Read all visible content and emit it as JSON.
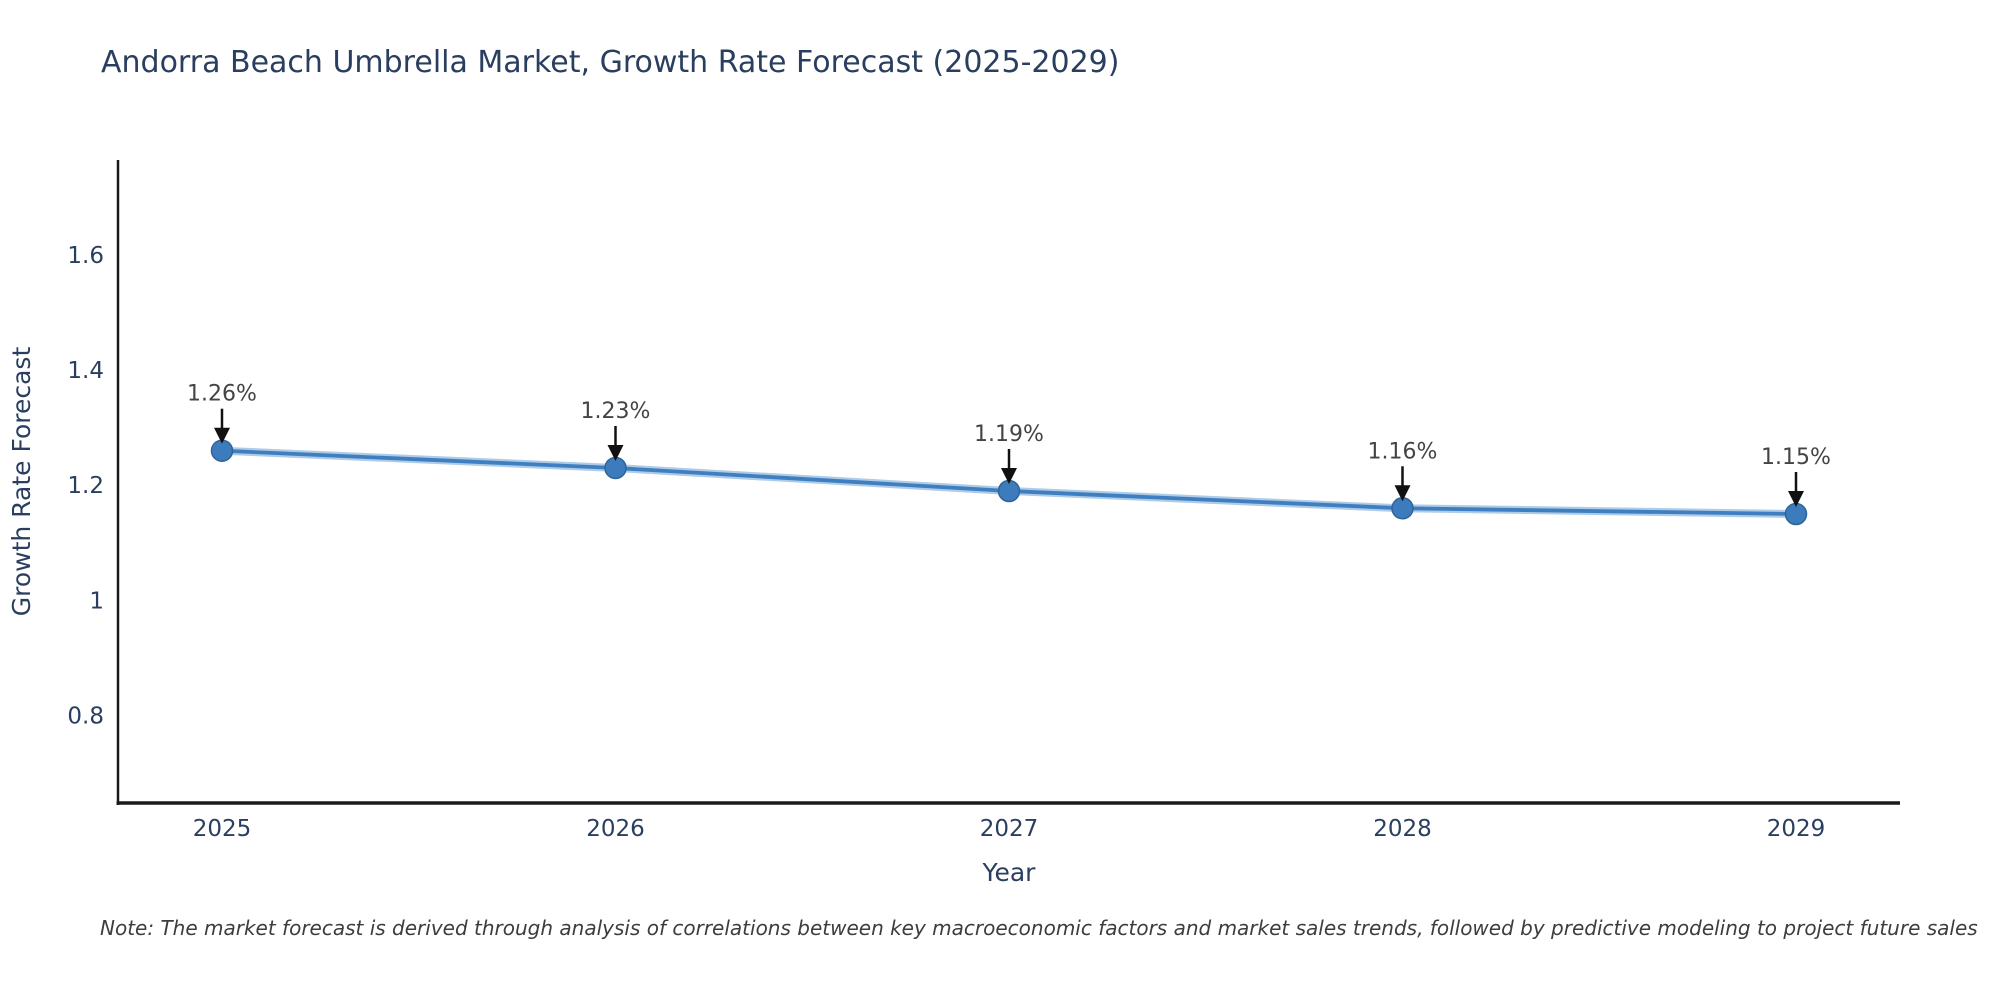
{
  "title": "Andorra Beach Umbrella Market, Growth Rate Forecast (2025-2029)",
  "footnote": "Note: The market forecast is derived through analysis of correlations between key macroeconomic factors and market sales trends, followed by predictive modeling to project future sales",
  "chart_data": {
    "type": "line",
    "title": "Andorra Beach Umbrella Market, Growth Rate Forecast (2025-2029)",
    "x": [
      2025,
      2026,
      2027,
      2028,
      2029
    ],
    "series": [
      {
        "name": "Growth Rate Forecast",
        "values": [
          1.26,
          1.23,
          1.19,
          1.16,
          1.15
        ]
      }
    ],
    "point_labels": [
      "1.26%",
      "1.23%",
      "1.19%",
      "1.16%",
      "1.15%"
    ],
    "xlabel": "Year",
    "ylabel": "Growth Rate Forecast",
    "yticks": [
      0.8,
      1,
      1.2,
      1.4,
      1.6
    ],
    "ylim": [
      0.648,
      1.765
    ],
    "grid": false,
    "legend": "none",
    "annotation_style": "value-with-down-arrow",
    "colors": {
      "line": "#3f7fbf",
      "line_halo": "#aecce8",
      "marker": "#3c7cbc",
      "marker_edge": "#2f639a",
      "axis": "#1a1a1a",
      "axis_text": "#2a3f5f",
      "annotation_text": "#444444",
      "arrow": "#111111",
      "background": "#ffffff"
    }
  }
}
